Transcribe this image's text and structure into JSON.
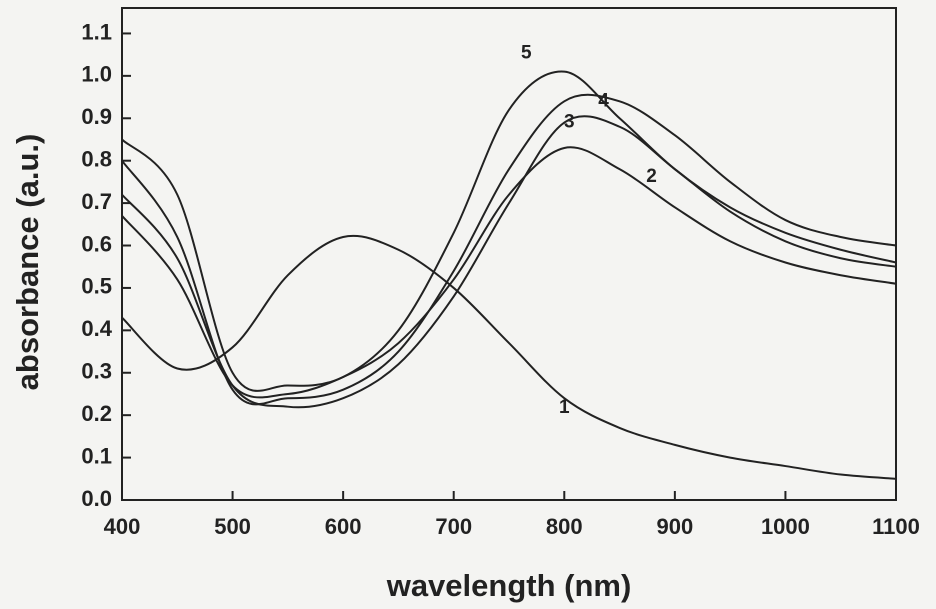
{
  "chart_data": {
    "type": "line",
    "x_label": "wavelength (nm)",
    "y_label": "absorbance (a.u.)",
    "x": [
      400,
      450,
      500,
      550,
      600,
      650,
      700,
      750,
      800,
      850,
      900,
      950,
      1000,
      1050,
      1100
    ],
    "series": [
      {
        "name": "1",
        "color": "#222222",
        "values": [
          0.43,
          0.31,
          0.36,
          0.53,
          0.62,
          0.59,
          0.5,
          0.37,
          0.24,
          0.17,
          0.13,
          0.1,
          0.08,
          0.06,
          0.05
        ]
      },
      {
        "name": "2",
        "color": "#222222",
        "values": [
          0.67,
          0.52,
          0.27,
          0.25,
          0.29,
          0.37,
          0.52,
          0.72,
          0.83,
          0.78,
          0.69,
          0.61,
          0.56,
          0.53,
          0.51
        ]
      },
      {
        "name": "3",
        "color": "#222222",
        "values": [
          0.72,
          0.57,
          0.27,
          0.22,
          0.24,
          0.32,
          0.48,
          0.7,
          0.89,
          0.88,
          0.78,
          0.68,
          0.61,
          0.57,
          0.55
        ]
      },
      {
        "name": "4",
        "color": "#222222",
        "values": [
          0.8,
          0.62,
          0.26,
          0.24,
          0.26,
          0.35,
          0.54,
          0.78,
          0.94,
          0.94,
          0.86,
          0.75,
          0.66,
          0.62,
          0.6
        ]
      },
      {
        "name": "5",
        "color": "#222222",
        "values": [
          0.85,
          0.72,
          0.3,
          0.27,
          0.29,
          0.4,
          0.63,
          0.92,
          1.01,
          0.9,
          0.78,
          0.69,
          0.63,
          0.59,
          0.56
        ]
      }
    ],
    "xlim": [
      400,
      1100
    ],
    "xticks": [
      400,
      500,
      600,
      700,
      800,
      900,
      1000,
      1100
    ],
    "ylim": [
      0,
      1.16
    ],
    "yticks": [
      {
        "value": 0,
        "label": "0.0"
      },
      0.1,
      0.2,
      0.3,
      0.4,
      0.5,
      0.6,
      0.7,
      0.8,
      0.9,
      {
        "value": 1,
        "label": "1.0"
      },
      1.1
    ],
    "grid": false
  }
}
